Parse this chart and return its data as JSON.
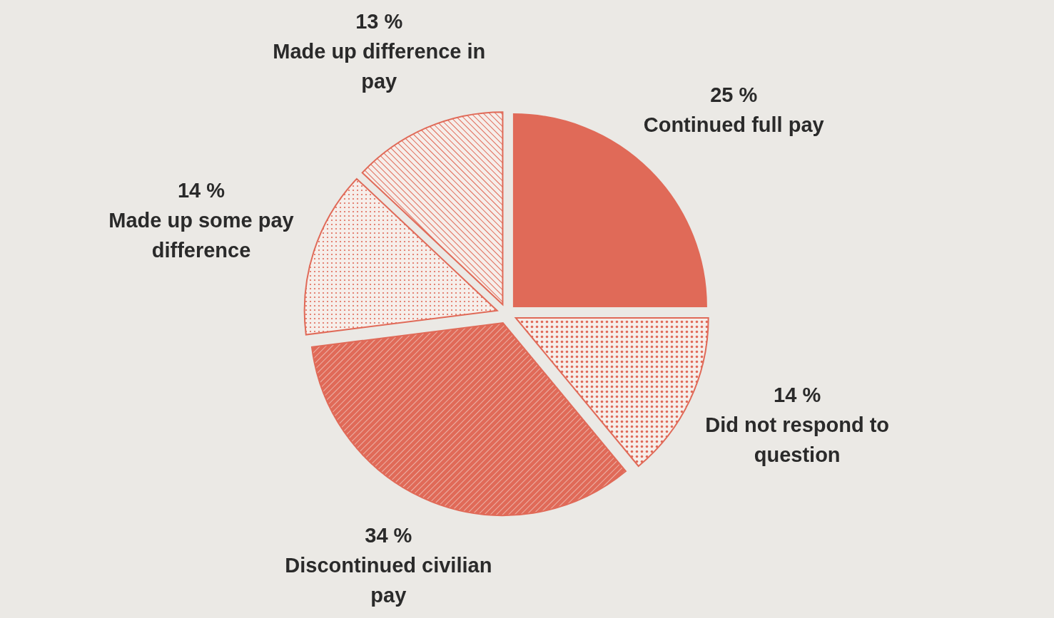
{
  "chart_data": {
    "type": "pie",
    "categories": [
      "Continued full pay",
      "Did not respond to question",
      "Discontinued civilian pay",
      "Made up some pay difference",
      "Made up difference in pay"
    ],
    "values": [
      25,
      14,
      34,
      14,
      13
    ],
    "value_labels": [
      "25 %",
      "14 %",
      "34 %",
      "14 %",
      "13 %"
    ],
    "colors": [
      "#e06a58",
      "#e06a58",
      "#e06a58",
      "#e06a58",
      "#e06a58"
    ]
  }
}
